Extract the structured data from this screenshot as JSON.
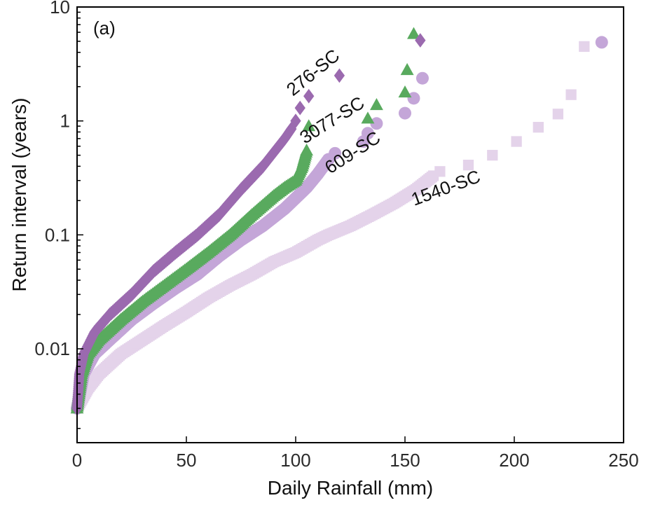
{
  "chart_data": {
    "type": "scatter",
    "panel_label": "(a)",
    "xlabel": "Daily Rainfall (mm)",
    "ylabel": "Return interval (years)",
    "xlim": [
      0,
      250
    ],
    "ylim": [
      0.0015,
      10
    ],
    "yscale": "log",
    "grid": false,
    "x_ticks": [
      0,
      50,
      100,
      150,
      200,
      250
    ],
    "x_tick_labels": [
      "0",
      "50",
      "100",
      "150",
      "200",
      "250"
    ],
    "y_ticks": [
      0.01,
      0.1,
      1,
      10
    ],
    "y_tick_labels": [
      "0.01",
      "0.1",
      "1",
      "10"
    ],
    "series": [
      {
        "name": "1540-SC",
        "marker": "square",
        "color": "#e4d3ea",
        "curve": [
          [
            0,
            0.003
          ],
          [
            5,
            0.0045
          ],
          [
            10,
            0.006
          ],
          [
            20,
            0.009
          ],
          [
            30,
            0.012
          ],
          [
            40,
            0.016
          ],
          [
            50,
            0.021
          ],
          [
            60,
            0.028
          ],
          [
            70,
            0.036
          ],
          [
            80,
            0.045
          ],
          [
            90,
            0.058
          ],
          [
            100,
            0.07
          ],
          [
            110,
            0.09
          ],
          [
            115,
            0.1
          ],
          [
            125,
            0.12
          ],
          [
            135,
            0.15
          ],
          [
            145,
            0.19
          ],
          [
            155,
            0.25
          ],
          [
            163,
            0.33
          ]
        ],
        "outliers": [
          [
            166,
            0.36
          ],
          [
            179,
            0.41
          ],
          [
            190,
            0.5
          ],
          [
            201,
            0.66
          ],
          [
            211,
            0.88
          ],
          [
            220,
            1.15
          ],
          [
            226,
            1.7
          ],
          [
            232,
            4.5
          ]
        ]
      },
      {
        "name": "609-SC",
        "marker": "circle",
        "color": "#c4a6d8",
        "curve": [
          [
            0,
            0.003
          ],
          [
            3,
            0.006
          ],
          [
            8,
            0.009
          ],
          [
            15,
            0.012
          ],
          [
            25,
            0.018
          ],
          [
            35,
            0.025
          ],
          [
            45,
            0.034
          ],
          [
            55,
            0.045
          ],
          [
            65,
            0.065
          ],
          [
            75,
            0.09
          ],
          [
            85,
            0.12
          ],
          [
            95,
            0.17
          ],
          [
            105,
            0.26
          ],
          [
            110,
            0.34
          ],
          [
            115,
            0.46
          ]
        ],
        "outliers": [
          [
            118,
            0.52
          ],
          [
            131,
            0.66
          ],
          [
            133,
            0.78
          ],
          [
            137,
            0.95
          ],
          [
            150,
            1.17
          ],
          [
            154,
            1.58
          ],
          [
            158,
            2.37
          ],
          [
            240,
            4.9
          ]
        ]
      },
      {
        "name": "3077-SC",
        "marker": "triangle",
        "color": "#59aa5e",
        "curve": [
          [
            0,
            0.003
          ],
          [
            2,
            0.006
          ],
          [
            5,
            0.009
          ],
          [
            10,
            0.012
          ],
          [
            20,
            0.018
          ],
          [
            30,
            0.026
          ],
          [
            40,
            0.036
          ],
          [
            50,
            0.05
          ],
          [
            60,
            0.07
          ],
          [
            70,
            0.1
          ],
          [
            80,
            0.15
          ],
          [
            90,
            0.22
          ],
          [
            95,
            0.26
          ],
          [
            100,
            0.3
          ],
          [
            103,
            0.4
          ],
          [
            105,
            0.55
          ]
        ],
        "outliers": [
          [
            106,
            0.9
          ],
          [
            133,
            1.05
          ],
          [
            137,
            1.38
          ],
          [
            150,
            1.78
          ],
          [
            151,
            2.8
          ],
          [
            154,
            5.8
          ]
        ]
      },
      {
        "name": "276-SC",
        "marker": "diamond",
        "color": "#9b6aaf",
        "curve": [
          [
            0,
            0.003
          ],
          [
            1,
            0.006
          ],
          [
            3,
            0.009
          ],
          [
            8,
            0.014
          ],
          [
            15,
            0.02
          ],
          [
            25,
            0.03
          ],
          [
            35,
            0.048
          ],
          [
            45,
            0.07
          ],
          [
            55,
            0.1
          ],
          [
            65,
            0.15
          ],
          [
            75,
            0.25
          ],
          [
            85,
            0.4
          ],
          [
            95,
            0.7
          ],
          [
            98,
            0.85
          ]
        ],
        "outliers": [
          [
            100,
            1.0
          ],
          [
            102,
            1.3
          ],
          [
            106,
            1.65
          ],
          [
            120,
            2.5
          ],
          [
            157,
            5.1
          ]
        ]
      }
    ],
    "annotations": [
      {
        "text": "276-SC",
        "series": "276-SC"
      },
      {
        "text": "3077-SC",
        "series": "3077-SC"
      },
      {
        "text": "609-SC",
        "series": "609-SC"
      },
      {
        "text": "1540-SC",
        "series": "1540-SC"
      }
    ]
  }
}
